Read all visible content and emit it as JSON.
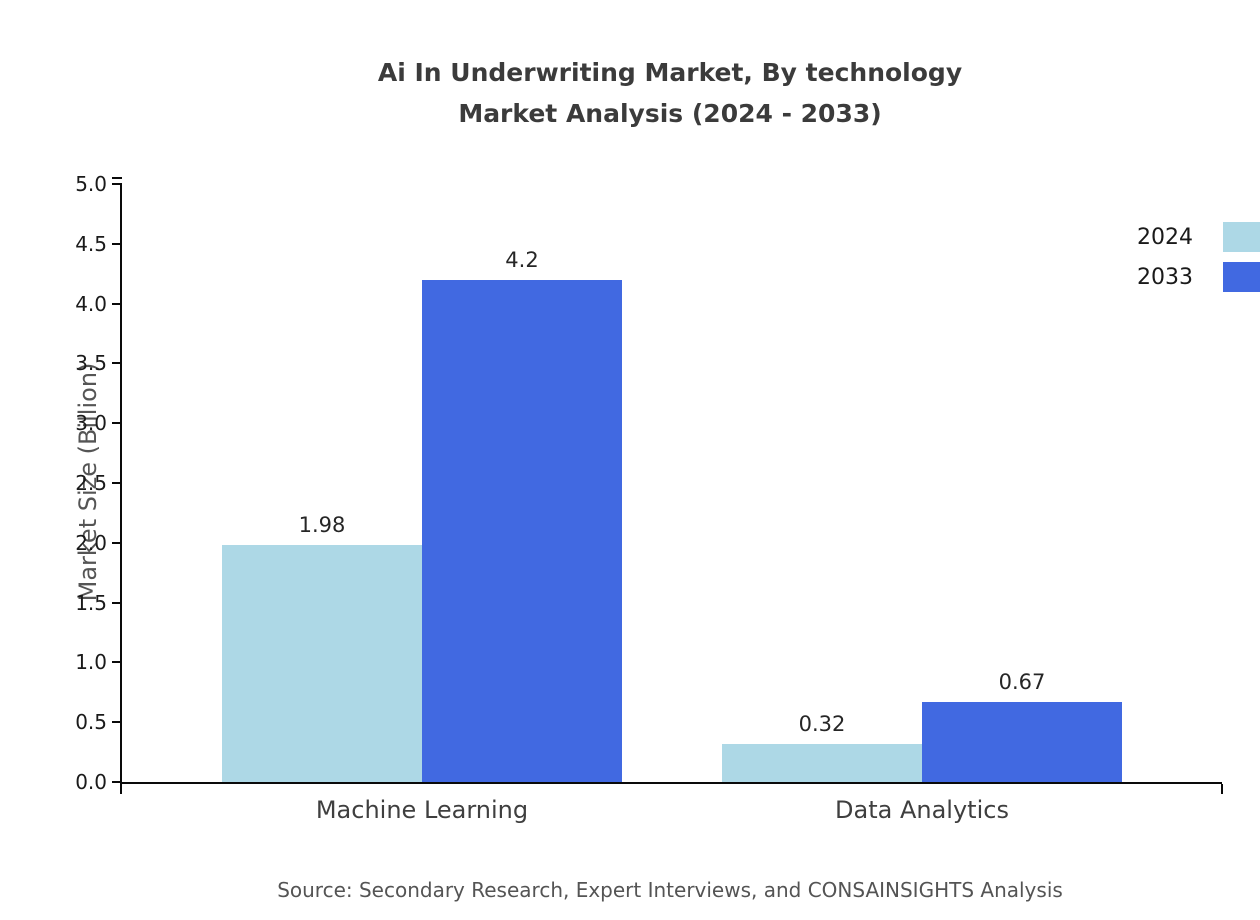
{
  "title_line1": "Ai In Underwriting Market, By technology",
  "title_line2": "Market Analysis (2024 - 2033)",
  "source": "Source: Secondary Research, Expert Interviews, and CONSAINSIGHTS Analysis",
  "chart_data": {
    "type": "bar",
    "title": "Ai In Underwriting Market, By technology Market Analysis (2024 - 2033)",
    "categories": [
      "Machine Learning",
      "Data Analytics"
    ],
    "series": [
      {
        "name": "2024",
        "color": "#add8e6",
        "values": [
          1.98,
          0.32
        ]
      },
      {
        "name": "2033",
        "color": "#4169e1",
        "values": [
          4.2,
          0.67
        ]
      }
    ],
    "value_labels": [
      [
        "1.98",
        "0.32"
      ],
      [
        "4.2",
        "0.67"
      ]
    ],
    "xlabel": "",
    "ylabel": "Market Size (Billion)",
    "ylim": [
      0,
      5
    ],
    "yticks": [
      0.0,
      0.5,
      1.0,
      1.5,
      2.0,
      2.5,
      3.0,
      3.5,
      4.0,
      4.5,
      5.0
    ],
    "ytick_labels": [
      "0.0",
      "0.5",
      "1.0",
      "1.5",
      "2.0",
      "2.5",
      "3.0",
      "3.5",
      "4.0",
      "4.5",
      "5.0"
    ],
    "grid": false,
    "legend_position": "upper-right-outside"
  }
}
